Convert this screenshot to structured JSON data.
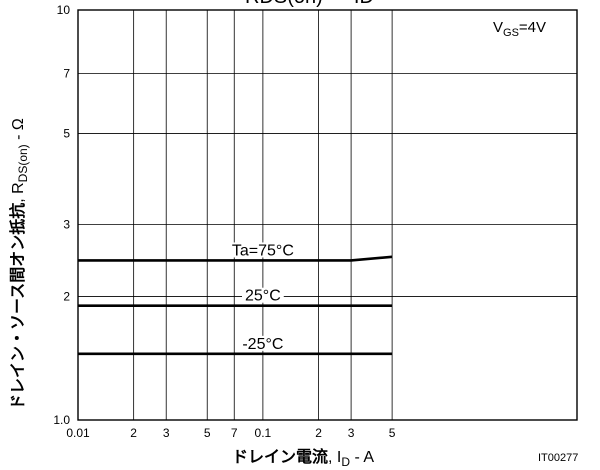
{
  "chart_data": {
    "type": "line",
    "title": "RDS(on) — ID",
    "xlabel": {
      "jp": "ドレイン電流",
      "symbol": "I",
      "sub": "D",
      "unit": " - A"
    },
    "ylabel": {
      "jp": "ドレイン・ソース間オン抵抗",
      "symbol": "R",
      "sub": "DS(on)",
      "unit": " - Ω"
    },
    "xscale": "log",
    "yscale": "log",
    "xlim": [
      0.01,
      5
    ],
    "ylim": [
      1.0,
      10
    ],
    "grid": true,
    "condition": {
      "symbol": "V",
      "sub": "GS",
      "value": "=4V"
    },
    "x_ticks": [
      {
        "value": 0.01,
        "label": "0.01"
      },
      {
        "value": 0.02,
        "label": "2"
      },
      {
        "value": 0.03,
        "label": "3"
      },
      {
        "value": 0.05,
        "label": "5"
      },
      {
        "value": 0.07,
        "label": "7"
      },
      {
        "value": 0.1,
        "label": "0.1"
      },
      {
        "value": 0.2,
        "label": "2"
      },
      {
        "value": 0.3,
        "label": "3"
      },
      {
        "value": 0.5,
        "label": "5"
      }
    ],
    "x_grid": [
      0.02,
      0.03,
      0.05,
      0.07,
      0.1,
      0.2,
      0.3,
      0.5
    ],
    "y_ticks": [
      {
        "value": 1.0,
        "label": "1.0"
      },
      {
        "value": 2,
        "label": "2"
      },
      {
        "value": 3,
        "label": "3"
      },
      {
        "value": 5,
        "label": "5"
      },
      {
        "value": 7,
        "label": "7"
      },
      {
        "value": 10,
        "label": "10"
      }
    ],
    "y_grid": [
      2,
      3,
      5,
      7
    ],
    "series": [
      {
        "name": "Ta=75°C",
        "x": [
          0.01,
          0.3,
          0.5
        ],
        "y": [
          2.45,
          2.45,
          2.5
        ]
      },
      {
        "name": "25°C",
        "x": [
          0.01,
          0.5
        ],
        "y": [
          1.9,
          1.9
        ]
      },
      {
        "name": "-25°C",
        "x": [
          0.01,
          0.5
        ],
        "y": [
          1.45,
          1.45
        ]
      }
    ],
    "figure_id": "IT00277"
  }
}
